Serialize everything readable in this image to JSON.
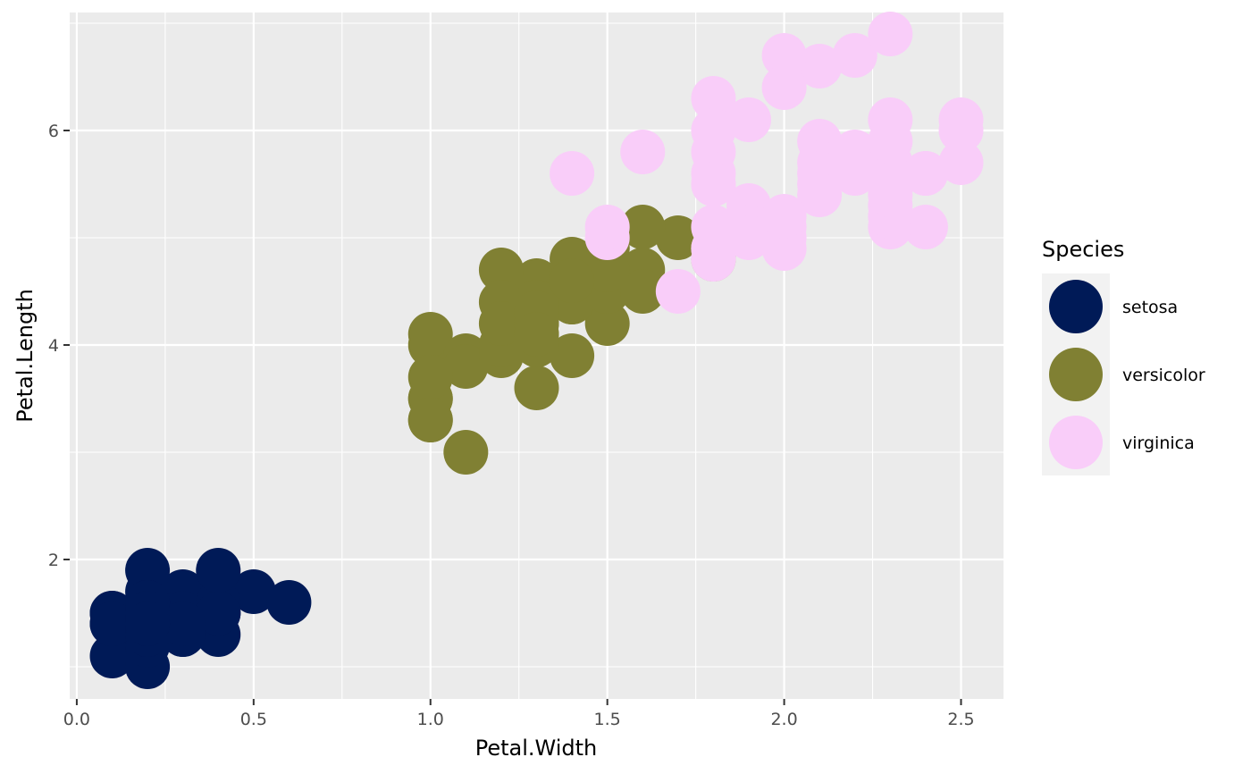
{
  "chart_data": {
    "type": "scatter",
    "title": "",
    "xlabel": "Petal.Width",
    "ylabel": "Petal.Length",
    "xlim": [
      -0.02,
      2.62
    ],
    "ylim": [
      0.7,
      7.1
    ],
    "xticks": [
      0.0,
      0.5,
      1.0,
      1.5,
      2.0,
      2.5
    ],
    "xtick_labels": [
      "0.0",
      "0.5",
      "1.0",
      "1.5",
      "2.0",
      "2.5"
    ],
    "yticks": [
      2,
      4,
      6
    ],
    "ytick_labels": [
      "2",
      "4",
      "6"
    ],
    "grid": true,
    "legend": {
      "title": "Species",
      "placement": "right"
    },
    "series": [
      {
        "name": "setosa",
        "color": "#001a57",
        "x": [
          0.2,
          0.2,
          0.2,
          0.2,
          0.2,
          0.4,
          0.3,
          0.2,
          0.2,
          0.1,
          0.2,
          0.2,
          0.1,
          0.1,
          0.2,
          0.4,
          0.4,
          0.3,
          0.3,
          0.3,
          0.2,
          0.4,
          0.2,
          0.5,
          0.2,
          0.2,
          0.4,
          0.2,
          0.2,
          0.2,
          0.2,
          0.4,
          0.1,
          0.2,
          0.2,
          0.2,
          0.2,
          0.1,
          0.2,
          0.2,
          0.3,
          0.3,
          0.2,
          0.6,
          0.4,
          0.3,
          0.2,
          0.2,
          0.2,
          0.2
        ],
        "y": [
          1.4,
          1.4,
          1.3,
          1.5,
          1.4,
          1.7,
          1.4,
          1.5,
          1.4,
          1.5,
          1.5,
          1.6,
          1.4,
          1.1,
          1.2,
          1.5,
          1.3,
          1.4,
          1.7,
          1.5,
          1.7,
          1.5,
          1.0,
          1.7,
          1.9,
          1.6,
          1.6,
          1.5,
          1.4,
          1.6,
          1.6,
          1.5,
          1.5,
          1.4,
          1.5,
          1.2,
          1.3,
          1.4,
          1.3,
          1.5,
          1.3,
          1.3,
          1.3,
          1.6,
          1.9,
          1.4,
          1.6,
          1.4,
          1.5,
          1.4
        ]
      },
      {
        "name": "versicolor",
        "color": "#808033",
        "x": [
          1.4,
          1.5,
          1.5,
          1.3,
          1.5,
          1.3,
          1.6,
          1.0,
          1.3,
          1.4,
          1.0,
          1.5,
          1.0,
          1.4,
          1.3,
          1.4,
          1.5,
          1.0,
          1.5,
          1.1,
          1.8,
          1.3,
          1.5,
          1.2,
          1.3,
          1.4,
          1.4,
          1.7,
          1.5,
          1.0,
          1.1,
          1.0,
          1.2,
          1.6,
          1.5,
          1.6,
          1.5,
          1.3,
          1.3,
          1.3,
          1.2,
          1.4,
          1.2,
          1.0,
          1.3,
          1.2,
          1.3,
          1.3,
          1.1,
          1.3
        ],
        "y": [
          4.7,
          4.5,
          4.9,
          4.0,
          4.6,
          4.5,
          4.7,
          3.3,
          4.6,
          3.9,
          3.5,
          4.2,
          4.0,
          4.7,
          3.6,
          4.4,
          4.5,
          4.1,
          4.5,
          3.9,
          4.8,
          4.0,
          4.9,
          4.7,
          4.3,
          4.4,
          4.8,
          5.0,
          4.5,
          3.5,
          3.8,
          3.7,
          3.9,
          5.1,
          4.5,
          4.5,
          4.7,
          4.4,
          4.1,
          4.0,
          4.4,
          4.6,
          4.0,
          3.3,
          4.2,
          4.2,
          4.2,
          4.3,
          3.0,
          4.1
        ]
      },
      {
        "name": "virginica",
        "color": "#f9cdf9",
        "x": [
          2.5,
          1.9,
          2.1,
          1.8,
          2.2,
          2.1,
          1.7,
          1.8,
          1.8,
          2.5,
          2.0,
          1.9,
          2.1,
          2.0,
          2.4,
          2.3,
          1.8,
          2.2,
          2.3,
          1.5,
          2.3,
          2.0,
          2.0,
          1.8,
          2.1,
          1.8,
          1.8,
          1.8,
          2.1,
          1.6,
          1.9,
          2.0,
          2.2,
          1.5,
          1.4,
          2.3,
          2.4,
          1.8,
          1.8,
          2.1,
          2.4,
          2.3,
          1.9,
          2.3,
          2.5,
          2.3,
          1.9,
          2.0,
          2.3,
          1.8
        ],
        "y": [
          6.0,
          5.1,
          5.9,
          5.6,
          5.8,
          6.6,
          4.5,
          6.3,
          5.8,
          6.1,
          5.1,
          5.3,
          5.5,
          5.0,
          5.1,
          5.3,
          5.5,
          6.7,
          6.9,
          5.0,
          5.7,
          4.9,
          6.7,
          4.9,
          5.7,
          6.0,
          4.8,
          4.9,
          5.6,
          5.8,
          6.1,
          6.4,
          5.6,
          5.1,
          5.6,
          6.1,
          5.6,
          5.5,
          4.8,
          5.4,
          5.6,
          5.1,
          5.1,
          5.9,
          5.7,
          5.2,
          5.0,
          5.2,
          5.4,
          5.1
        ]
      }
    ]
  }
}
